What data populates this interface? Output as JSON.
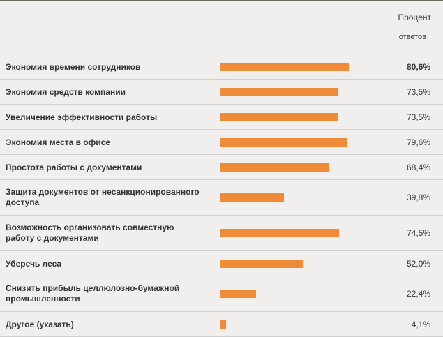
{
  "header": {
    "line1": "Процент",
    "line2": "ответов"
  },
  "colors": {
    "bar": "#ef8a37",
    "background": "#f0efed",
    "divider": "#cfcfcf"
  },
  "rows": [
    {
      "label": "Экономия времени сотрудников",
      "value": "80,6%",
      "pct": 80.6,
      "bold": true
    },
    {
      "label": "Экономия средств компании",
      "value": "73,5%",
      "pct": 73.5
    },
    {
      "label": "Увеличение эффективности работы",
      "value": "73,5%",
      "pct": 73.5
    },
    {
      "label": "Экономия места в офисе",
      "value": "79,6%",
      "pct": 79.6
    },
    {
      "label": "Простота работы с документами",
      "value": "68,4%",
      "pct": 68.4
    },
    {
      "label": "Защита документов от несанкционированного доступа",
      "value": "39,8%",
      "pct": 39.8
    },
    {
      "label": "Возможность организовать совместную работу с документами",
      "value": "74,5%",
      "pct": 74.5
    },
    {
      "label": "Уберечь леса",
      "value": "52,0%",
      "pct": 52.0
    },
    {
      "label": "Снизить прибыль целлюлозно-бумажной промышленности",
      "value": "22,4%",
      "pct": 22.4
    },
    {
      "label": "Другое (указать)",
      "value": "4,1%",
      "pct": 4.1
    }
  ],
  "chart_data": {
    "type": "bar",
    "orientation": "horizontal",
    "title": "",
    "xlabel": "",
    "ylabel": "Процент ответов",
    "categories": [
      "Экономия времени сотрудников",
      "Экономия средств компании",
      "Увеличение эффективности работы",
      "Экономия места в офисе",
      "Простота работы с документами",
      "Защита документов от несанкционированного доступа",
      "Возможность организовать совместную работу с документами",
      "Уберечь леса",
      "Снизить прибыль целлюлозно-бумажной промышленности",
      "Другое (указать)"
    ],
    "values": [
      80.6,
      73.5,
      73.5,
      79.6,
      68.4,
      39.8,
      74.5,
      52.0,
      22.4,
      4.1
    ],
    "value_labels": [
      "80,6%",
      "73,5%",
      "73,5%",
      "79,6%",
      "68,4%",
      "39,8%",
      "74,5%",
      "52,0%",
      "22,4%",
      "4,1%"
    ],
    "xlim": [
      0,
      100
    ],
    "grid": false,
    "legend": null
  }
}
